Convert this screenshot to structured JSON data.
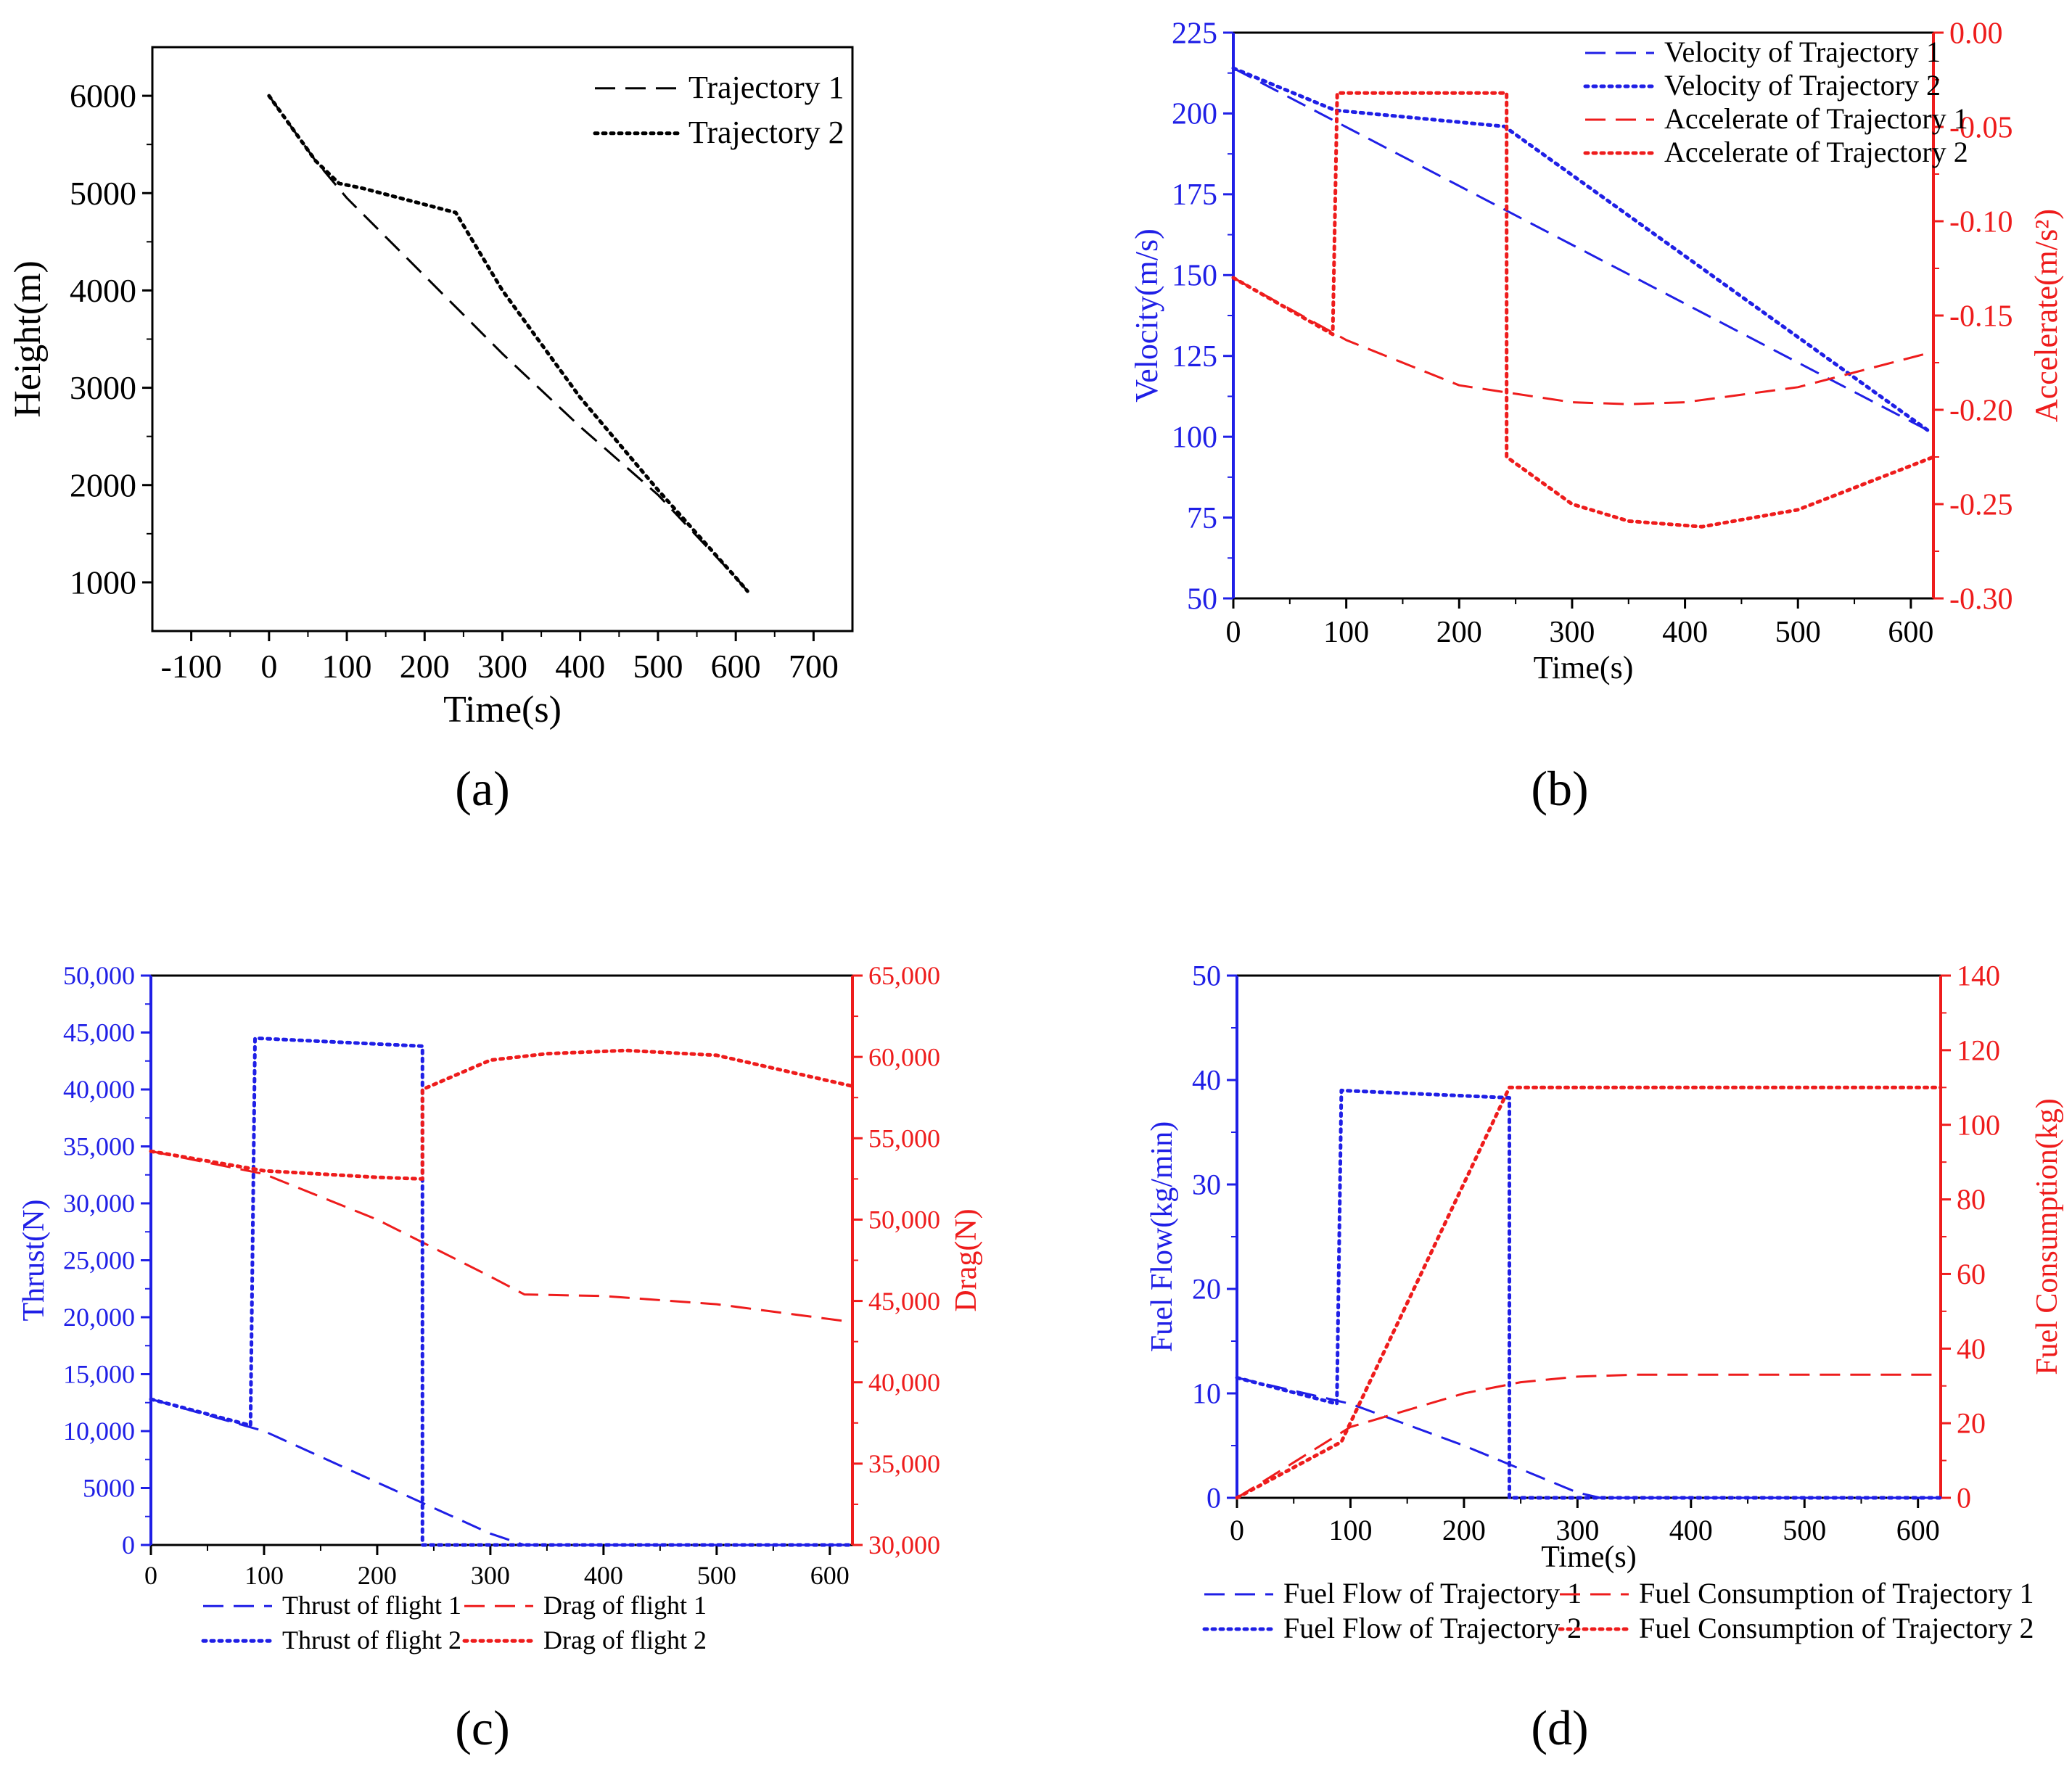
{
  "colors": {
    "black": "#000000",
    "blue": "#1f1fe6",
    "red": "#ee1c1c"
  },
  "panel_captions": {
    "a": "(a)",
    "b": "(b)",
    "c": "(c)",
    "d": "(d)"
  },
  "chart_data": [
    {
      "id": "a",
      "type": "line",
      "xlabel": "Time(s)",
      "ylabel": "Height(m)",
      "xlim": [
        -150,
        750
      ],
      "ylim": [
        500,
        6500
      ],
      "xticks": [
        -100,
        0,
        100,
        200,
        300,
        400,
        500,
        600,
        700
      ],
      "yticks": [
        1000,
        2000,
        3000,
        4000,
        5000,
        6000
      ],
      "legend_position": "top-right",
      "series": [
        {
          "name": "Trajectory 1",
          "style": "dashed",
          "color": "#000000",
          "x": [
            0,
            60,
            100,
            200,
            300,
            400,
            500,
            600,
            615
          ],
          "y": [
            6000,
            5330,
            4950,
            4150,
            3350,
            2600,
            1900,
            1050,
            910
          ]
        },
        {
          "name": "Trajectory 2",
          "style": "dotted",
          "color": "#000000",
          "x": [
            0,
            60,
            90,
            120,
            240,
            300,
            400,
            500,
            600,
            615
          ],
          "y": [
            6000,
            5330,
            5100,
            5050,
            4800,
            4000,
            2900,
            1950,
            1050,
            910
          ]
        }
      ]
    },
    {
      "id": "b",
      "type": "line",
      "xlabel": "Time(s)",
      "ylabel": "Velocity(m/s)",
      "ylabel_right": "Accelerate(m/s²)",
      "xlim": [
        0,
        620
      ],
      "ylim": [
        50,
        225
      ],
      "ylim_right": [
        -0.3,
        0.0
      ],
      "xticks": [
        0,
        100,
        200,
        300,
        400,
        500,
        600
      ],
      "yticks": [
        50,
        75,
        100,
        125,
        150,
        175,
        200,
        225
      ],
      "yticks_right": [
        "-0.30",
        "-0.25",
        "-0.20",
        "-0.15",
        "-0.10",
        "-0.05",
        "0.00"
      ],
      "legend_position": "top-right",
      "series": [
        {
          "name": "Velocity of Trajectory 1",
          "style": "dashed",
          "color": "#1f1fe6",
          "axis": "left",
          "x": [
            0,
            615
          ],
          "y": [
            214,
            102
          ]
        },
        {
          "name": "Velocity of Trajectory 2",
          "style": "dotted",
          "color": "#1f1fe6",
          "axis": "left",
          "x": [
            0,
            90,
            240,
            615
          ],
          "y": [
            214,
            201,
            196,
            102
          ]
        },
        {
          "name": "Accelerate of Trajectory 1",
          "style": "dashed",
          "color": "#ee1c1c",
          "axis": "right",
          "x": [
            0,
            100,
            200,
            300,
            350,
            400,
            500,
            615
          ],
          "y": [
            -0.13,
            -0.163,
            -0.187,
            -0.196,
            -0.197,
            -0.196,
            -0.188,
            -0.17
          ]
        },
        {
          "name": "Accelerate of Trajectory 2",
          "style": "dotted",
          "color": "#ee1c1c",
          "axis": "right",
          "x": [
            0,
            88,
            88,
            92,
            92,
            238,
            238,
            242,
            242,
            300,
            350,
            415,
            500,
            620
          ],
          "y": [
            -0.13,
            -0.16,
            -0.16,
            -0.032,
            -0.032,
            -0.032,
            -0.032,
            -0.032,
            -0.225,
            -0.25,
            -0.259,
            -0.262,
            -0.253,
            -0.225
          ]
        }
      ]
    },
    {
      "id": "c",
      "type": "line",
      "xlabel": "",
      "ylabel": "Thrust(N)",
      "ylabel_right": "Drag(N)",
      "xlim": [
        0,
        620
      ],
      "ylim": [
        0,
        50000
      ],
      "ylim_right": [
        30000,
        65000
      ],
      "xticks": [
        0,
        100,
        200,
        300,
        400,
        500,
        600
      ],
      "yticks": [
        "0",
        "5000",
        "10,000",
        "15,000",
        "20,000",
        "25,000",
        "30,000",
        "35,000",
        "40,000",
        "45,000",
        "50,000"
      ],
      "yticks_right": [
        "30,000",
        "35,000",
        "40,000",
        "45,000",
        "50,000",
        "55,000",
        "60,000",
        "65,000"
      ],
      "legend_position": "bottom",
      "series": [
        {
          "name": "Thrust of flight 1",
          "style": "dashed",
          "color": "#1f1fe6",
          "axis": "left",
          "x": [
            0,
            100,
            200,
            300,
            330,
            620
          ],
          "y": [
            12800,
            10000,
            5500,
            1000,
            0,
            0
          ]
        },
        {
          "name": "Drag of flight 1",
          "style": "dashed",
          "color": "#ee1c1c",
          "axis": "right",
          "x": [
            0,
            100,
            200,
            300,
            330,
            400,
            500,
            620
          ],
          "y": [
            54200,
            52800,
            50000,
            46500,
            45400,
            45300,
            44800,
            43700
          ]
        },
        {
          "name": "Thrust of flight 2",
          "style": "dotted",
          "color": "#1f1fe6",
          "axis": "left",
          "x": [
            0,
            88,
            88,
            92,
            92,
            240,
            240,
            620
          ],
          "y": [
            12800,
            10500,
            10500,
            44500,
            44500,
            43800,
            0,
            0
          ]
        },
        {
          "name": "Drag of flight 2",
          "style": "dotted",
          "color": "#ee1c1c",
          "axis": "right",
          "x": [
            0,
            100,
            200,
            240,
            240,
            300,
            350,
            420,
            500,
            620
          ],
          "y": [
            54200,
            53000,
            52600,
            52500,
            58000,
            59800,
            60200,
            60400,
            60100,
            58200
          ]
        }
      ]
    },
    {
      "id": "d",
      "type": "line",
      "xlabel": "Time(s)",
      "ylabel": "Fuel Flow(kg/min)",
      "ylabel_right": "Fuel Consumption(kg)",
      "xlim": [
        0,
        620
      ],
      "ylim": [
        0,
        50
      ],
      "ylim_right": [
        0,
        140
      ],
      "xticks": [
        0,
        100,
        200,
        300,
        400,
        500,
        600
      ],
      "yticks": [
        0,
        10,
        20,
        30,
        40,
        50
      ],
      "yticks_right": [
        0,
        20,
        40,
        60,
        80,
        100,
        120,
        140
      ],
      "legend_position": "bottom",
      "series": [
        {
          "name": "Fuel Flow of Trajectory 1",
          "style": "dashed",
          "color": "#1f1fe6",
          "axis": "left",
          "x": [
            0,
            100,
            200,
            300,
            320,
            620
          ],
          "y": [
            11.5,
            9.0,
            5.0,
            0.5,
            0,
            0
          ]
        },
        {
          "name": "Fuel Consumption of Trajectory 1",
          "style": "dashed",
          "color": "#ee1c1c",
          "axis": "right",
          "x": [
            0,
            100,
            200,
            250,
            300,
            350,
            620
          ],
          "y": [
            0,
            19,
            28,
            31,
            32.5,
            33,
            33
          ]
        },
        {
          "name": "Fuel Flow of Trajectory 2",
          "style": "dotted",
          "color": "#1f1fe6",
          "axis": "left",
          "x": [
            0,
            88,
            88,
            92,
            92,
            240,
            240,
            620
          ],
          "y": [
            11.5,
            9.0,
            9.0,
            39.0,
            39.0,
            38.3,
            0,
            0
          ]
        },
        {
          "name": "Fuel Consumption of Trajectory 2",
          "style": "dotted",
          "color": "#ee1c1c",
          "axis": "right",
          "x": [
            0,
            92,
            240,
            620
          ],
          "y": [
            0,
            15,
            110,
            110
          ]
        }
      ]
    }
  ]
}
